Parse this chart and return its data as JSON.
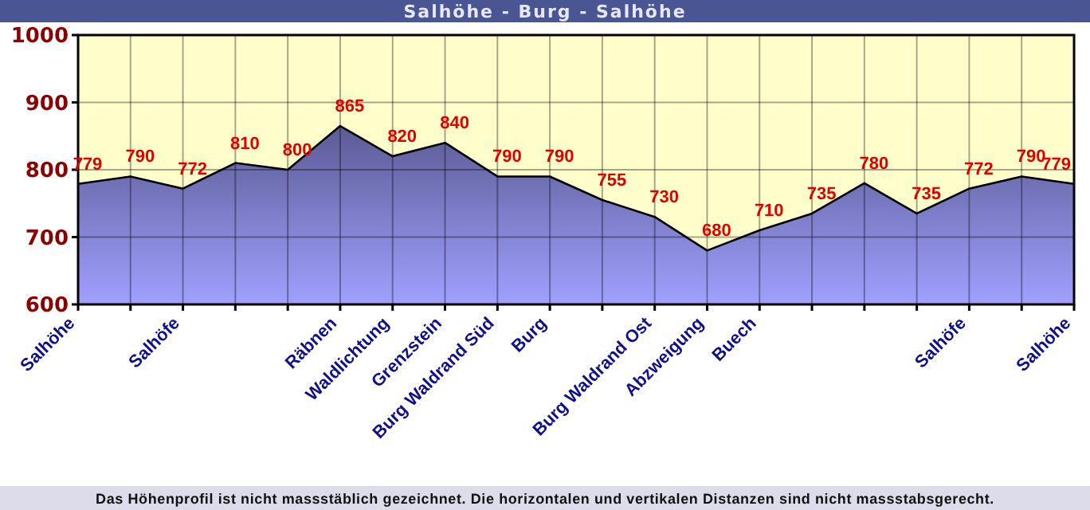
{
  "chart_data": {
    "type": "area",
    "title": "Salhöhe - Burg - Salhöhe",
    "categories": [
      "Salhöhe",
      null,
      "Salhöfe",
      null,
      null,
      "Räbnen",
      "Waldlichtung",
      "Grenzstein",
      "Burg Waldrand Süd",
      "Burg",
      null,
      "Burg Waldrand Ost",
      "Abzweigung",
      "Buech",
      null,
      null,
      null,
      "Salhöfe",
      null,
      "Salhöhe"
    ],
    "series": [
      {
        "color": "#6c6cb0",
        "values": [
          779,
          790,
          772,
          810,
          800,
          865,
          820,
          840,
          790,
          790,
          755,
          730,
          680,
          710,
          735,
          780,
          735,
          772,
          790,
          779
        ]
      }
    ],
    "ylim": [
      600,
      1000
    ],
    "yticks": [
      600,
      700,
      800,
      900,
      1000
    ],
    "grid": true,
    "data_labels": true,
    "annotations": [
      "Das Höhenprofil ist nicht massstäblich gezeichnet. Die horizontalen und vertikalen Distanzen sind nicht massstabsgerecht."
    ]
  }
}
